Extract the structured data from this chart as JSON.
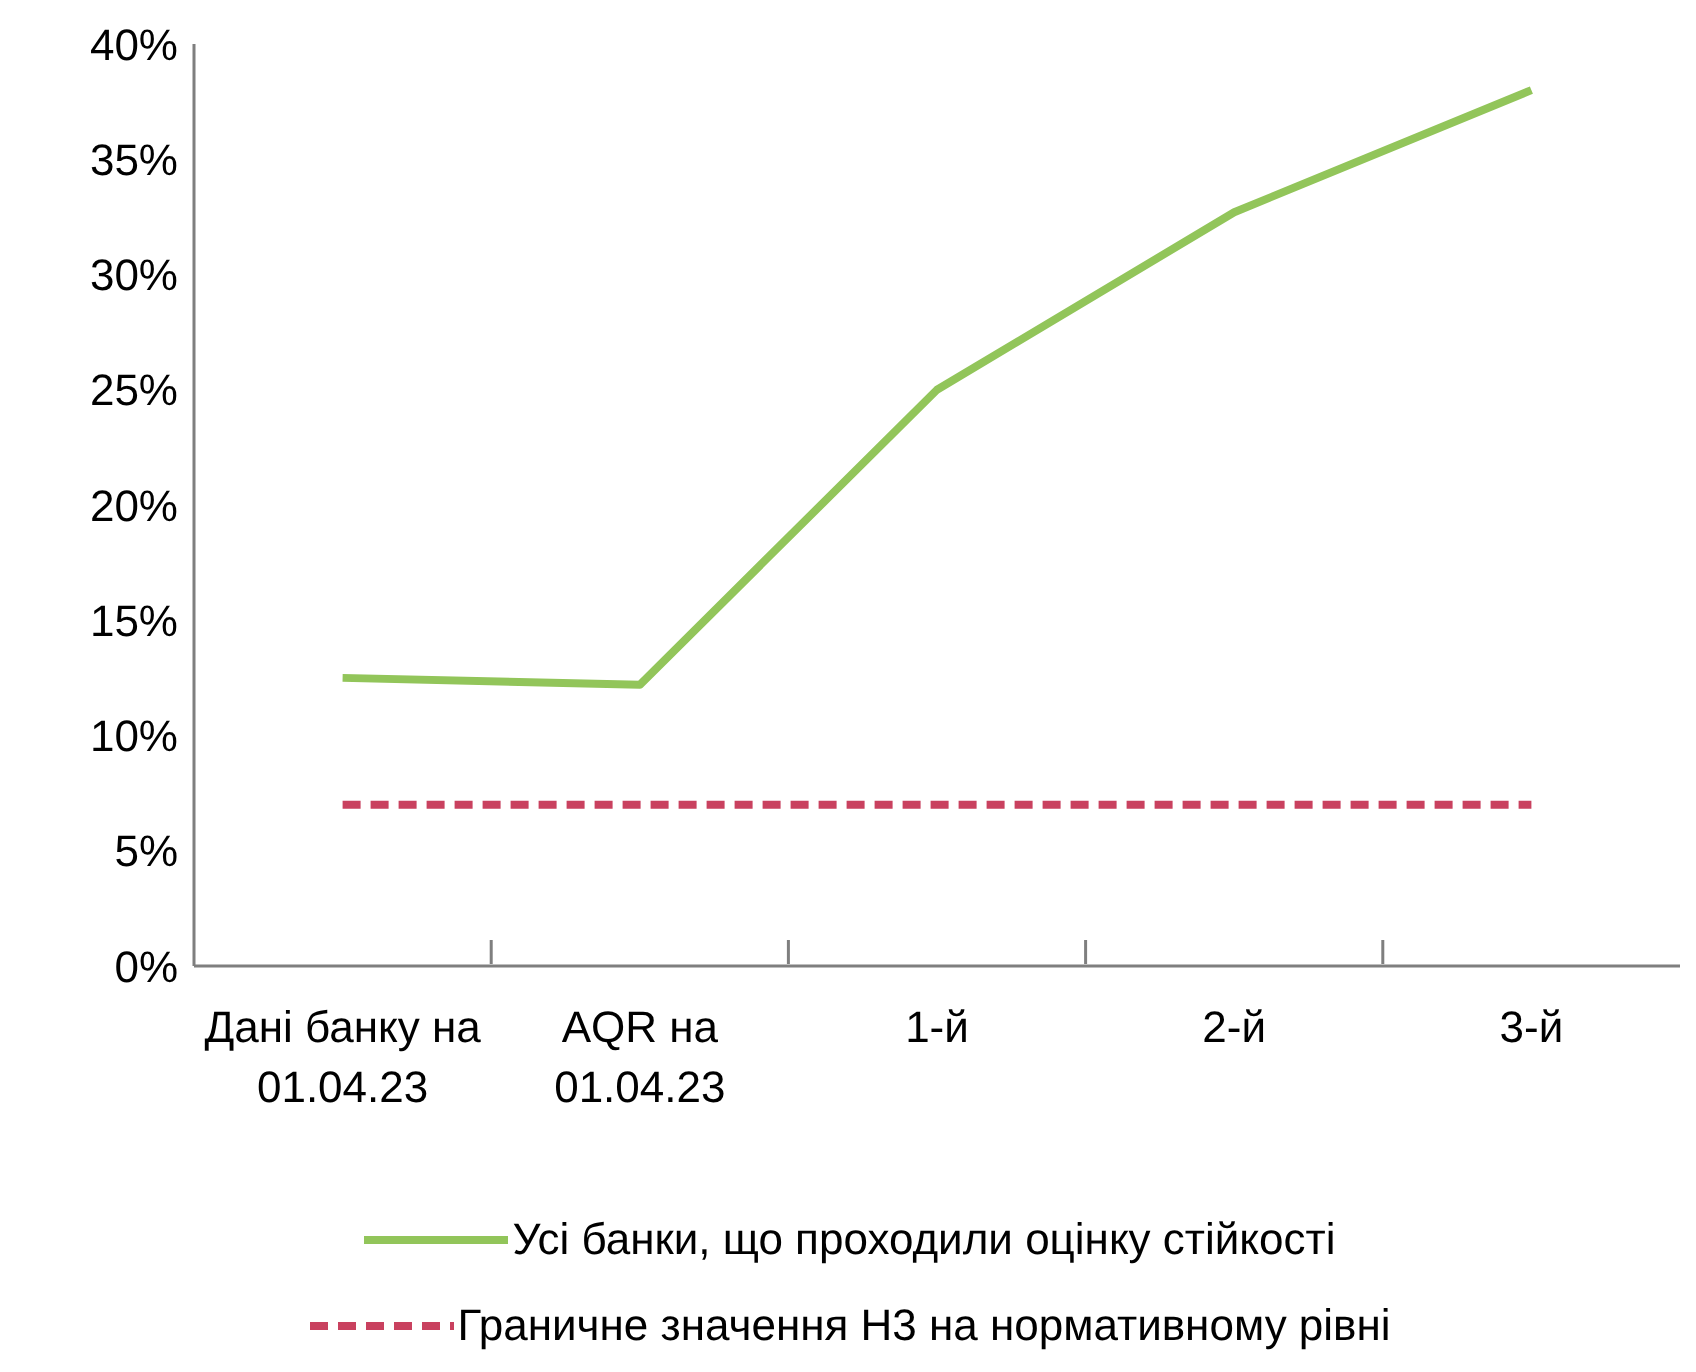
{
  "chart_data": {
    "type": "line",
    "categories": [
      "Дані банку на 01.04.23",
      "AQR на 01.04.23",
      "1-й",
      "2-й",
      "3-й"
    ],
    "series": [
      {
        "name": "Усі банки, що проходили оцінку стійкості",
        "color": "#92c55a",
        "values": [
          12.5,
          12.2,
          25,
          32.7,
          38
        ],
        "line_style": "solid"
      },
      {
        "name": "Граничне значення Н3 на нормативному рівні",
        "color": "#c9415f",
        "values": [
          7,
          7,
          7,
          7,
          7
        ],
        "line_style": "dashed"
      }
    ],
    "ylim": [
      0,
      40
    ],
    "yticks": [
      {
        "value": 0,
        "label": "0%"
      },
      {
        "value": 5,
        "label": "5%"
      },
      {
        "value": 10,
        "label": "10%"
      },
      {
        "value": 15,
        "label": "15%"
      },
      {
        "value": 20,
        "label": "20%"
      },
      {
        "value": 25,
        "label": "25%"
      },
      {
        "value": 30,
        "label": "30%"
      },
      {
        "value": 35,
        "label": "35%"
      },
      {
        "value": 40,
        "label": "40%"
      }
    ],
    "grid": false,
    "legend": "bottom",
    "marker": "none"
  }
}
